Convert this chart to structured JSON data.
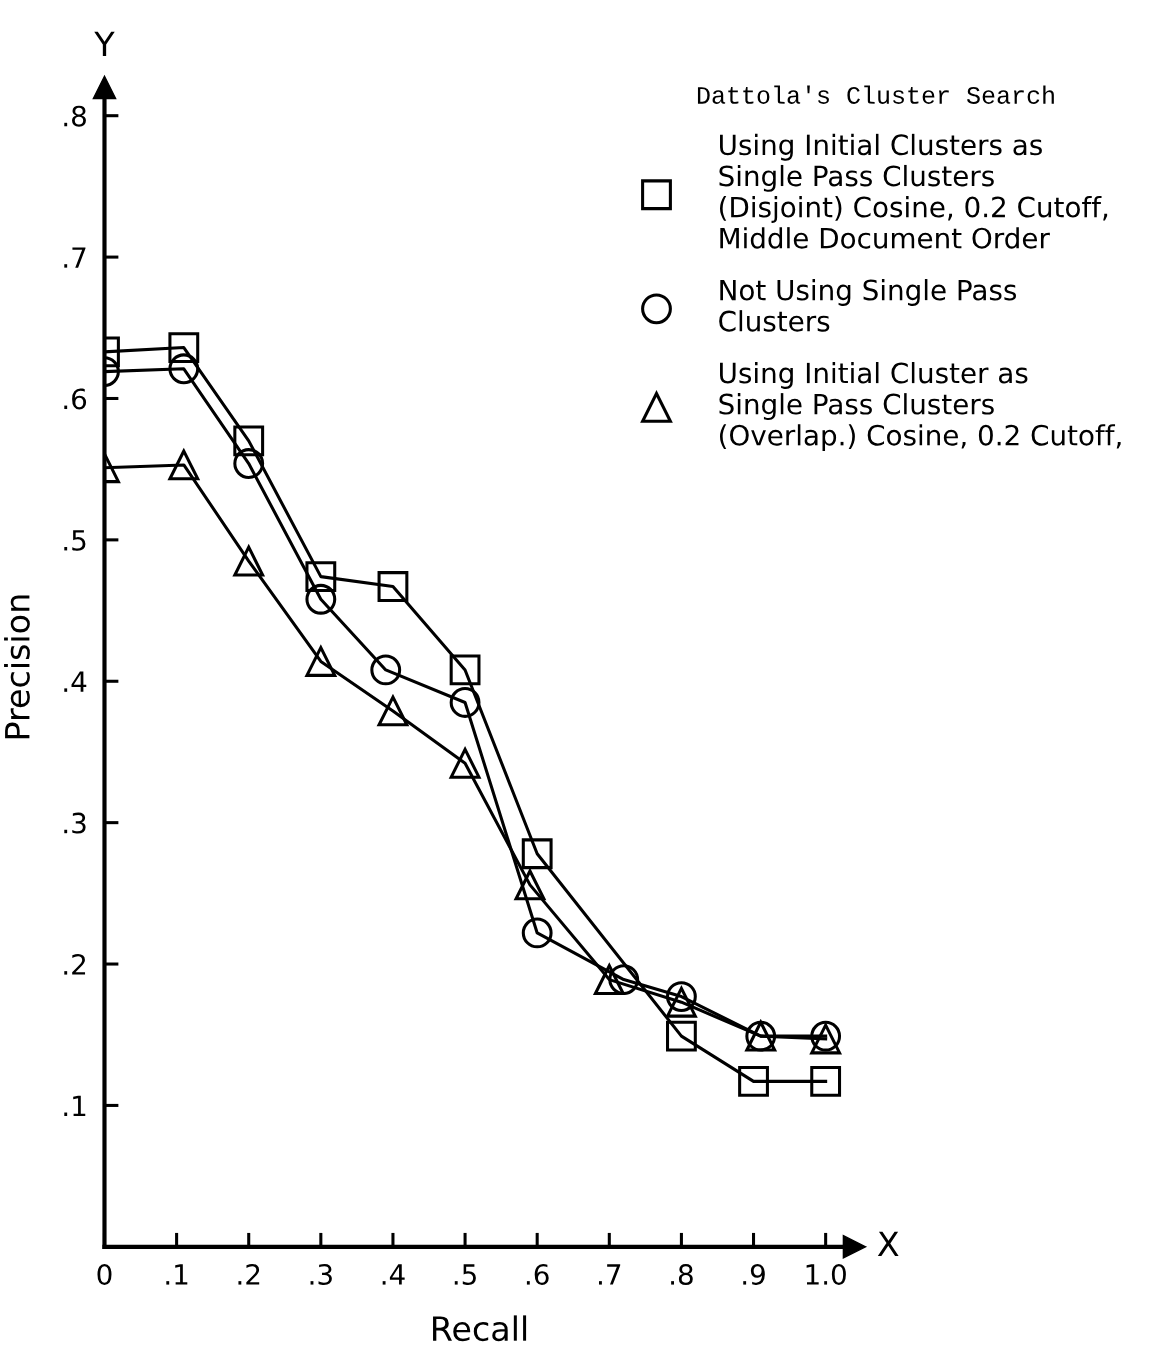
{
  "chart_data": {
    "type": "line",
    "xlabel": "Recall",
    "ylabel": "Precision",
    "legend_title": "Dattola's Cluster Search",
    "legend": "top right",
    "grid": false,
    "line_style": "solid",
    "xlim": [
      0,
      1.04
    ],
    "ylim": [
      0,
      0.82
    ],
    "xticks": [
      {
        "value": 0,
        "label": "0"
      },
      {
        "value": 0.1,
        "label": ".1"
      },
      {
        "value": 0.2,
        "label": ".2"
      },
      {
        "value": 0.3,
        "label": ".3"
      },
      {
        "value": 0.4,
        "label": ".4"
      },
      {
        "value": 0.5,
        "label": ".5"
      },
      {
        "value": 0.6,
        "label": ".6"
      },
      {
        "value": 0.7,
        "label": ".7"
      },
      {
        "value": 0.8,
        "label": ".8"
      },
      {
        "value": 0.9,
        "label": ".9"
      },
      {
        "value": 1.0,
        "label": "1.0"
      }
    ],
    "yticks": [
      {
        "value": 0.1,
        "label": ".1"
      },
      {
        "value": 0.2,
        "label": ".2"
      },
      {
        "value": 0.3,
        "label": ".3"
      },
      {
        "value": 0.4,
        "label": ".4"
      },
      {
        "value": 0.5,
        "label": ".5"
      },
      {
        "value": 0.6,
        "label": ".6"
      },
      {
        "value": 0.7,
        "label": ".7"
      },
      {
        "value": 0.8,
        "label": ".8"
      }
    ],
    "annotations": [
      "Y",
      "X"
    ],
    "series": [
      {
        "name": "Using Initial Clusters as\nSingle Pass Clusters\n(Disjoint) Cosine, 0.2 Cutoff,\nMiddle Document Order",
        "color": "#000000",
        "marker": "square",
        "x": [
          0.0,
          0.11,
          0.2,
          0.3,
          0.4,
          0.5,
          0.6,
          0.8,
          0.9,
          1.0
        ],
        "values": [
          0.633,
          0.636,
          0.57,
          0.474,
          0.467,
          0.408,
          0.278,
          0.149,
          0.117,
          0.117
        ]
      },
      {
        "name": "Not Using Single Pass\nClusters",
        "color": "#000000",
        "marker": "circle",
        "x": [
          0.0,
          0.11,
          0.2,
          0.3,
          0.39,
          0.5,
          0.6,
          0.72,
          0.8,
          0.91,
          1.0
        ],
        "values": [
          0.619,
          0.621,
          0.554,
          0.458,
          0.408,
          0.385,
          0.222,
          0.189,
          0.177,
          0.149,
          0.149
        ]
      },
      {
        "name": "Using Initial Cluster as\nSingle Pass Clusters\n(Overlap.) Cosine, 0.2 Cutoff,",
        "color": "#000000",
        "marker": "triangle",
        "x": [
          0.0,
          0.11,
          0.2,
          0.3,
          0.4,
          0.5,
          0.59,
          0.7,
          0.8,
          0.91,
          1.0
        ],
        "values": [
          0.551,
          0.553,
          0.485,
          0.414,
          0.379,
          0.342,
          0.256,
          0.189,
          0.173,
          0.149,
          0.147
        ]
      }
    ]
  }
}
